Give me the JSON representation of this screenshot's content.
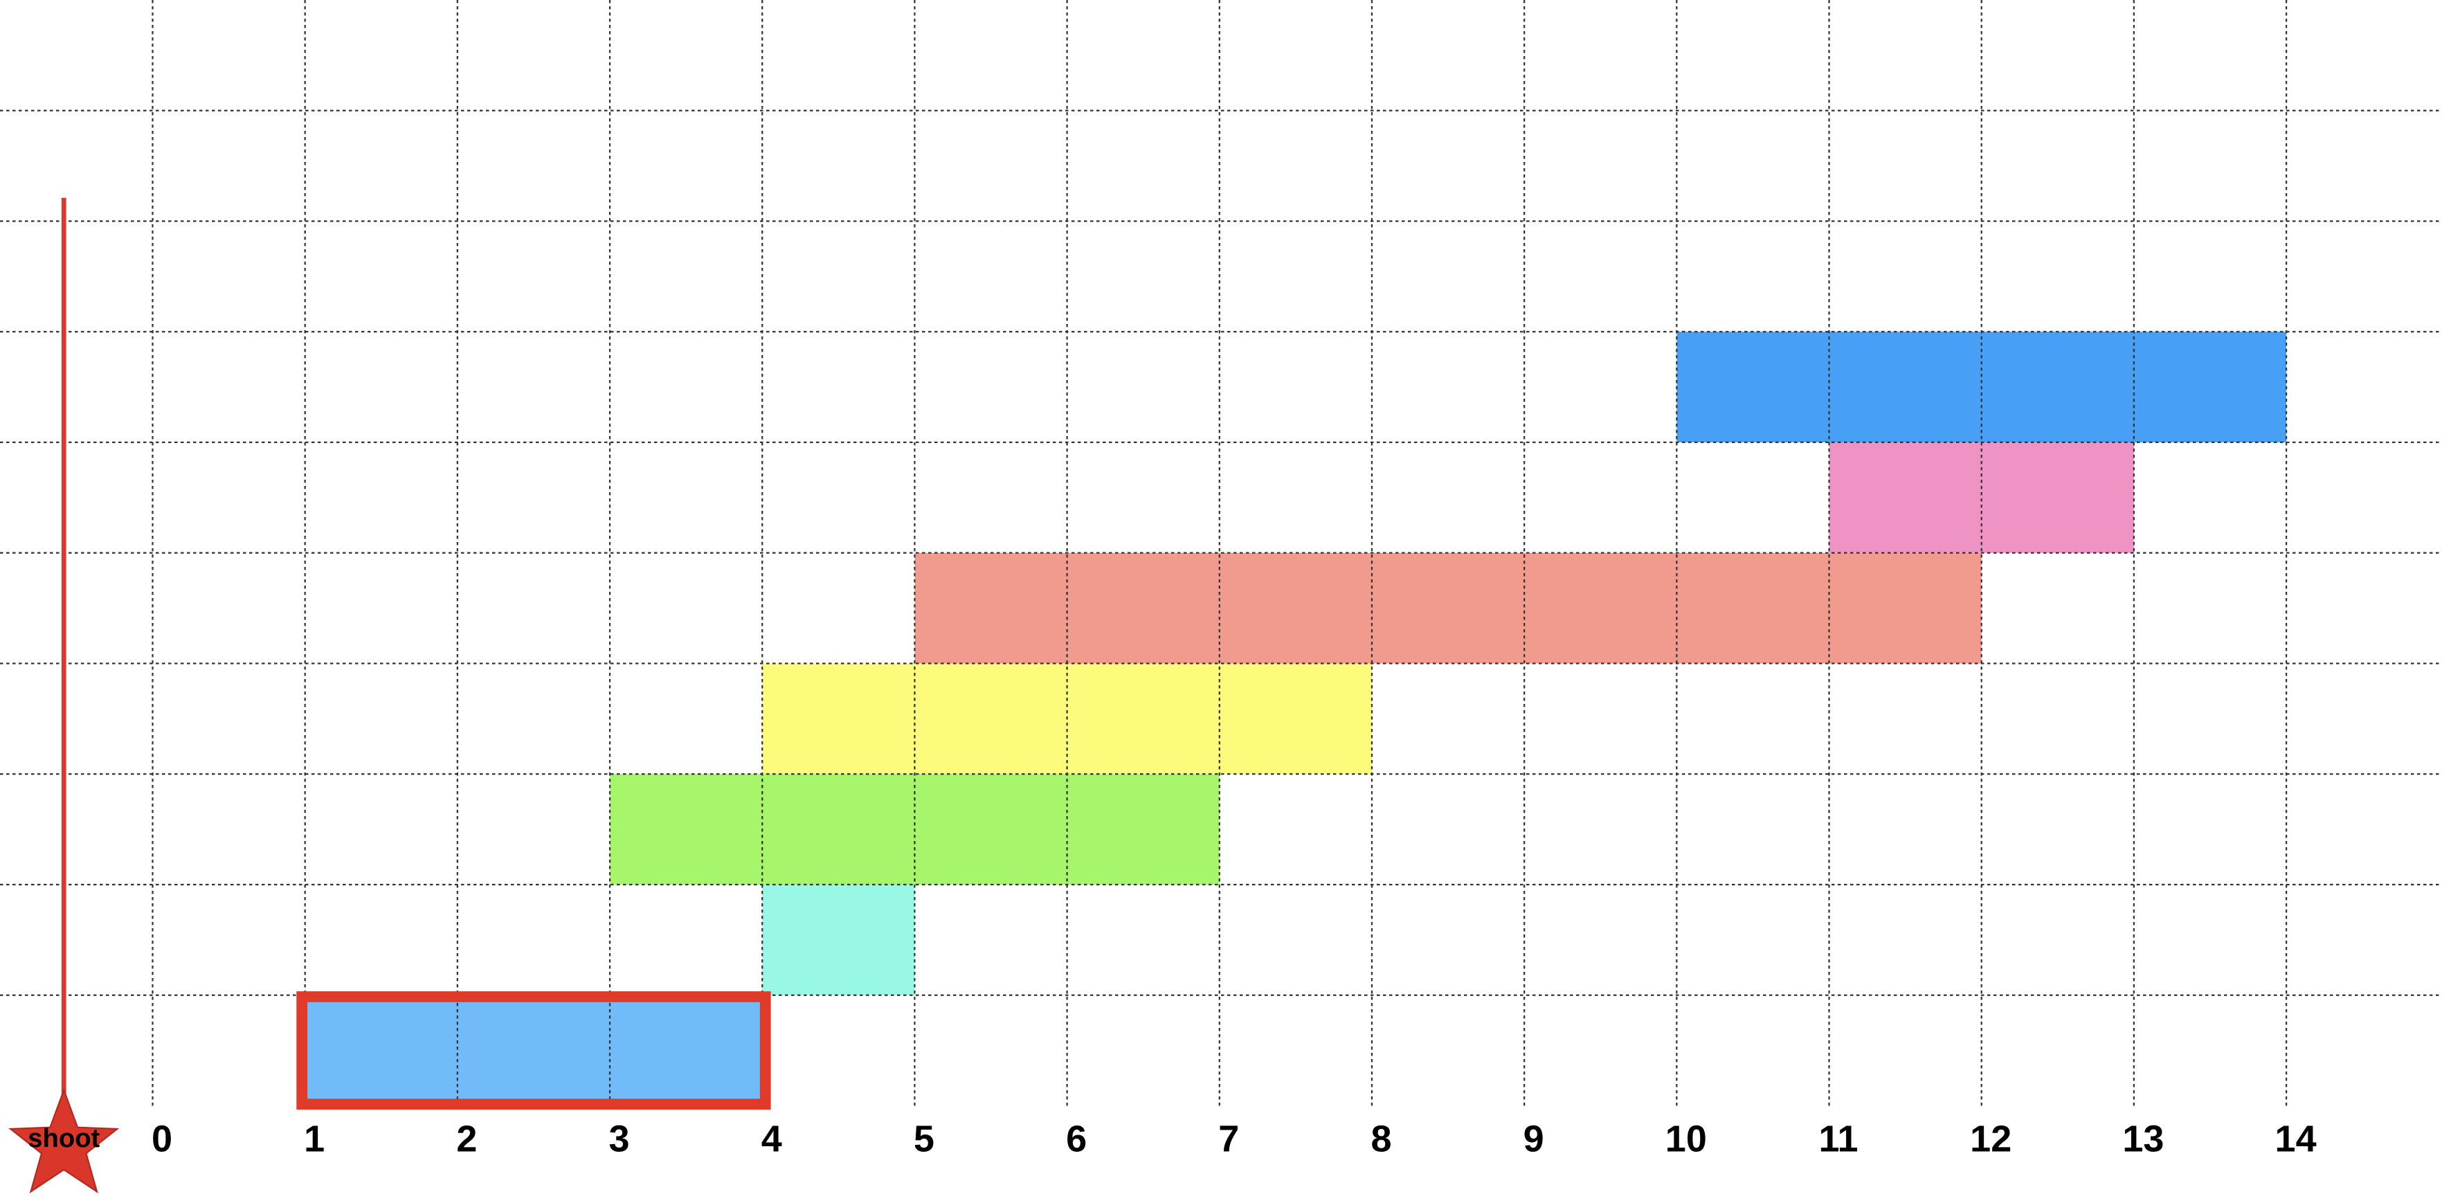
{
  "ticks": [
    0,
    1,
    2,
    3,
    4,
    5,
    6,
    7,
    8,
    9,
    10,
    11,
    12,
    13,
    14
  ],
  "shooter_label": "shoot",
  "balloons": [
    {
      "start": 1,
      "end": 4,
      "color": "#70bbf8",
      "highlighted": true
    },
    {
      "start": 4,
      "end": 5,
      "color": "#99f7e6"
    },
    {
      "start": 3,
      "end": 7,
      "color": "#a6f56a"
    },
    {
      "start": 4,
      "end": 8,
      "color": "#fdfb7c"
    },
    {
      "start": 5,
      "end": 12,
      "color": "#f19b8e"
    },
    {
      "start": 11,
      "end": 13,
      "color": "#ef93c4"
    },
    {
      "start": 10,
      "end": 14,
      "color": "#47a0f6"
    }
  ]
}
